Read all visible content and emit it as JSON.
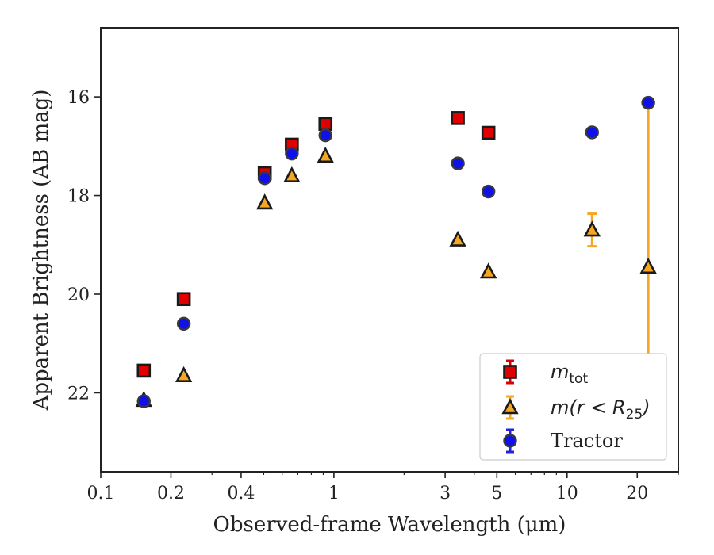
{
  "chart_data": {
    "type": "scatter",
    "xlabel": "Observed-frame Wavelength (μm)",
    "ylabel": "Apparent Brightness (AB mag)",
    "x_scale": "log",
    "y_inverted": true,
    "xlim": [
      0.1,
      30
    ],
    "ylim": [
      23.6,
      14.6
    ],
    "x_ticks": [
      {
        "value": 0.1,
        "label": "0.1"
      },
      {
        "value": 0.2,
        "label": "0.2"
      },
      {
        "value": 0.4,
        "label": "0.4"
      },
      {
        "value": 1,
        "label": "1"
      },
      {
        "value": 3,
        "label": "3"
      },
      {
        "value": 5,
        "label": "5"
      },
      {
        "value": 10,
        "label": "10"
      },
      {
        "value": 20,
        "label": "20"
      }
    ],
    "y_ticks": [
      {
        "value": 16,
        "label": "16"
      },
      {
        "value": 18,
        "label": "18"
      },
      {
        "value": 20,
        "label": "20"
      },
      {
        "value": 22,
        "label": "22"
      }
    ],
    "grid": false,
    "legend_position": "lower-right",
    "series": [
      {
        "name": "m_tot",
        "legend_main": "m",
        "legend_sub": "tot",
        "marker": "square",
        "fill": "#e00000",
        "errcolor": "#dd0000",
        "points": [
          {
            "x": 0.153,
            "y": 21.55
          },
          {
            "x": 0.227,
            "y": 20.1
          },
          {
            "x": 0.505,
            "y": 17.55
          },
          {
            "x": 0.66,
            "y": 16.97
          },
          {
            "x": 0.92,
            "y": 16.55
          },
          {
            "x": 3.4,
            "y": 16.43
          },
          {
            "x": 4.6,
            "y": 16.73
          }
        ]
      },
      {
        "name": "m(r<R25)",
        "legend_main": "m(r < R",
        "legend_sub": "25",
        "legend_end": ")",
        "marker": "triangle",
        "fill": "#f5a623",
        "errcolor": "#f5a623",
        "points": [
          {
            "x": 0.153,
            "y": 22.15
          },
          {
            "x": 0.227,
            "y": 21.65
          },
          {
            "x": 0.505,
            "y": 18.15
          },
          {
            "x": 0.66,
            "y": 17.6
          },
          {
            "x": 0.92,
            "y": 17.2
          },
          {
            "x": 3.4,
            "y": 18.9
          },
          {
            "x": 4.6,
            "y": 19.55
          },
          {
            "x": 12.8,
            "y": 18.7,
            "err": 0.33
          },
          {
            "x": 22.3,
            "y": 19.45,
            "yerr_lo": 16.12,
            "yerr_hi": 22.6
          }
        ]
      },
      {
        "name": "Tractor",
        "legend_main": "Tractor",
        "marker": "circle",
        "fill": "#1010e8",
        "errcolor": "#2222dd",
        "points": [
          {
            "x": 0.153,
            "y": 22.17
          },
          {
            "x": 0.227,
            "y": 20.6
          },
          {
            "x": 0.505,
            "y": 17.65
          },
          {
            "x": 0.66,
            "y": 17.15
          },
          {
            "x": 0.92,
            "y": 16.78
          },
          {
            "x": 3.4,
            "y": 17.35
          },
          {
            "x": 4.6,
            "y": 17.92
          },
          {
            "x": 12.8,
            "y": 16.72
          },
          {
            "x": 22.3,
            "y": 16.12
          }
        ]
      }
    ]
  }
}
